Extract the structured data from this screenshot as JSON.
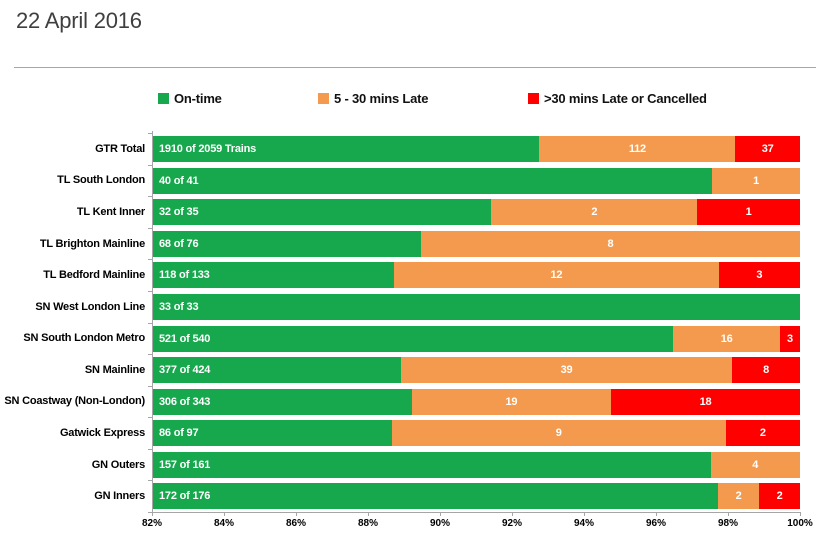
{
  "title": "22 April 2016",
  "colors": {
    "on_time": "#17a74d",
    "late": "#f49a4e",
    "cancelled": "#fe0000",
    "axis": "#a6a6a6",
    "title_text": "#3f3f3f"
  },
  "legend": {
    "items": [
      {
        "label": "On-time",
        "color": "#17a74d"
      },
      {
        "label": "5 - 30 mins Late",
        "color": "#f49a4e"
      },
      {
        "label": ">30 mins Late or Cancelled",
        "color": "#fe0000"
      }
    ]
  },
  "chart_data": {
    "type": "bar",
    "orientation": "horizontal-stacked",
    "title": "22 April 2016",
    "legend_position": "top",
    "grid": false,
    "x_axis": {
      "min": 82,
      "max": 100,
      "tick_step": 2,
      "unit": "percent",
      "tick_labels": [
        "82%",
        "84%",
        "86%",
        "88%",
        "90%",
        "92%",
        "94%",
        "96%",
        "98%",
        "100%"
      ]
    },
    "categories": [
      "GTR Total",
      "TL South London",
      "TL Kent Inner",
      "TL Brighton Mainline",
      "TL Bedford Mainline",
      "SN West London Line",
      "SN South London Metro",
      "SN Mainline",
      "SN Coastway (Non-London)",
      "Gatwick Express",
      "GN Outers",
      "GN Inners"
    ],
    "series": [
      {
        "name": "On-time",
        "values": [
          1910,
          40,
          32,
          68,
          118,
          33,
          521,
          377,
          306,
          86,
          157,
          172
        ]
      },
      {
        "name": "5 - 30 mins Late",
        "values": [
          112,
          1,
          2,
          8,
          12,
          0,
          16,
          39,
          19,
          9,
          4,
          2
        ]
      },
      {
        "name": ">30 mins Late or Cancelled",
        "values": [
          37,
          0,
          1,
          0,
          3,
          0,
          3,
          8,
          18,
          2,
          0,
          2
        ]
      }
    ],
    "totals": [
      2059,
      41,
      35,
      76,
      133,
      33,
      540,
      424,
      343,
      97,
      161,
      176
    ],
    "rows": [
      {
        "category": "GTR Total",
        "on_time": 1910,
        "late": 112,
        "cancelled": 37,
        "total": 2059,
        "on_time_label": "1910 of 2059 Trains",
        "late_label": "112",
        "cancelled_label": "37"
      },
      {
        "category": "TL South London",
        "on_time": 40,
        "late": 1,
        "cancelled": 0,
        "total": 41,
        "on_time_label": "40 of 41",
        "late_label": "1",
        "cancelled_label": ""
      },
      {
        "category": "TL Kent Inner",
        "on_time": 32,
        "late": 2,
        "cancelled": 1,
        "total": 35,
        "on_time_label": "32 of 35",
        "late_label": "2",
        "cancelled_label": "1"
      },
      {
        "category": "TL Brighton Mainline",
        "on_time": 68,
        "late": 8,
        "cancelled": 0,
        "total": 76,
        "on_time_label": "68 of 76",
        "late_label": "8",
        "cancelled_label": ""
      },
      {
        "category": "TL Bedford Mainline",
        "on_time": 118,
        "late": 12,
        "cancelled": 3,
        "total": 133,
        "on_time_label": "118 of 133",
        "late_label": "12",
        "cancelled_label": "3"
      },
      {
        "category": "SN West London Line",
        "on_time": 33,
        "late": 0,
        "cancelled": 0,
        "total": 33,
        "on_time_label": "33 of 33",
        "late_label": "",
        "cancelled_label": ""
      },
      {
        "category": "SN South London Metro",
        "on_time": 521,
        "late": 16,
        "cancelled": 3,
        "total": 540,
        "on_time_label": "521 of 540",
        "late_label": "16",
        "cancelled_label": "3"
      },
      {
        "category": "SN Mainline",
        "on_time": 377,
        "late": 39,
        "cancelled": 8,
        "total": 424,
        "on_time_label": "377 of 424",
        "late_label": "39",
        "cancelled_label": "8"
      },
      {
        "category": "SN Coastway (Non-London)",
        "on_time": 306,
        "late": 19,
        "cancelled": 18,
        "total": 343,
        "on_time_label": "306 of 343",
        "late_label": "19",
        "cancelled_label": "18"
      },
      {
        "category": "Gatwick Express",
        "on_time": 86,
        "late": 9,
        "cancelled": 2,
        "total": 97,
        "on_time_label": "86 of 97",
        "late_label": "9",
        "cancelled_label": "2"
      },
      {
        "category": "GN Outers",
        "on_time": 157,
        "late": 4,
        "cancelled": 0,
        "total": 161,
        "on_time_label": "157 of 161",
        "late_label": "4",
        "cancelled_label": ""
      },
      {
        "category": "GN Inners",
        "on_time": 172,
        "late": 2,
        "cancelled": 2,
        "total": 176,
        "on_time_label": "172 of 176",
        "late_label": "2",
        "cancelled_label": "2"
      }
    ]
  }
}
